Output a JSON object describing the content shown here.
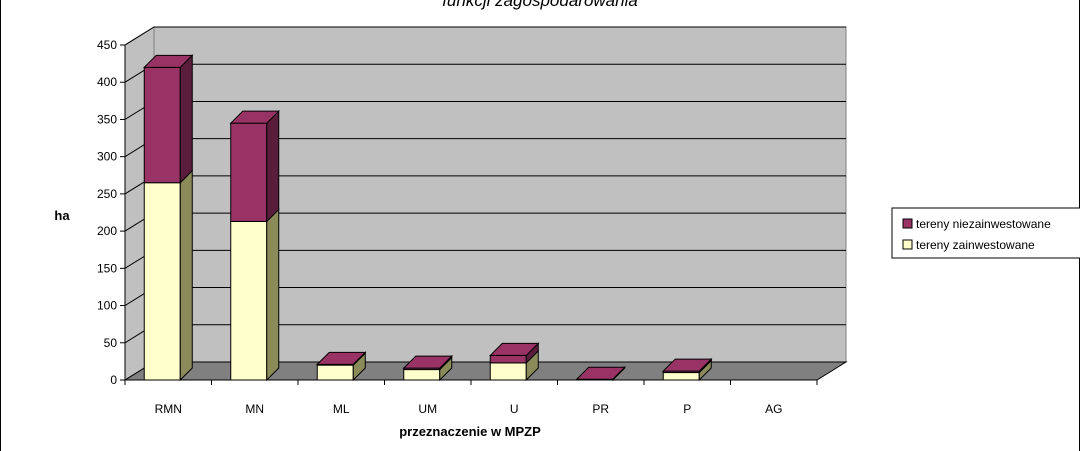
{
  "chart_data": {
    "type": "bar",
    "stacked": true,
    "three_d": true,
    "title": "funkcji zagospodarowania",
    "xlabel": "przeznaczenie w MPZP",
    "ylabel": "ha",
    "ylim": [
      0,
      450
    ],
    "yticks": [
      0,
      50,
      100,
      150,
      200,
      250,
      300,
      350,
      400,
      450
    ],
    "grid": true,
    "legend_position": "right",
    "categories": [
      "RMN",
      "MN",
      "ML",
      "UM",
      "U",
      "PR",
      "P",
      "AG"
    ],
    "series": [
      {
        "name": "tereny zainwestowane",
        "color": "#FFFFCC",
        "values": [
          265,
          213,
          20,
          14,
          23,
          0,
          10,
          0
        ]
      },
      {
        "name": "tereny niezainwestowane",
        "color": "#993366",
        "values": [
          155,
          132,
          1,
          2,
          10,
          1,
          2,
          0
        ]
      }
    ],
    "colors": {
      "wall": "#C0C0C0",
      "floor": "#808080"
    }
  }
}
